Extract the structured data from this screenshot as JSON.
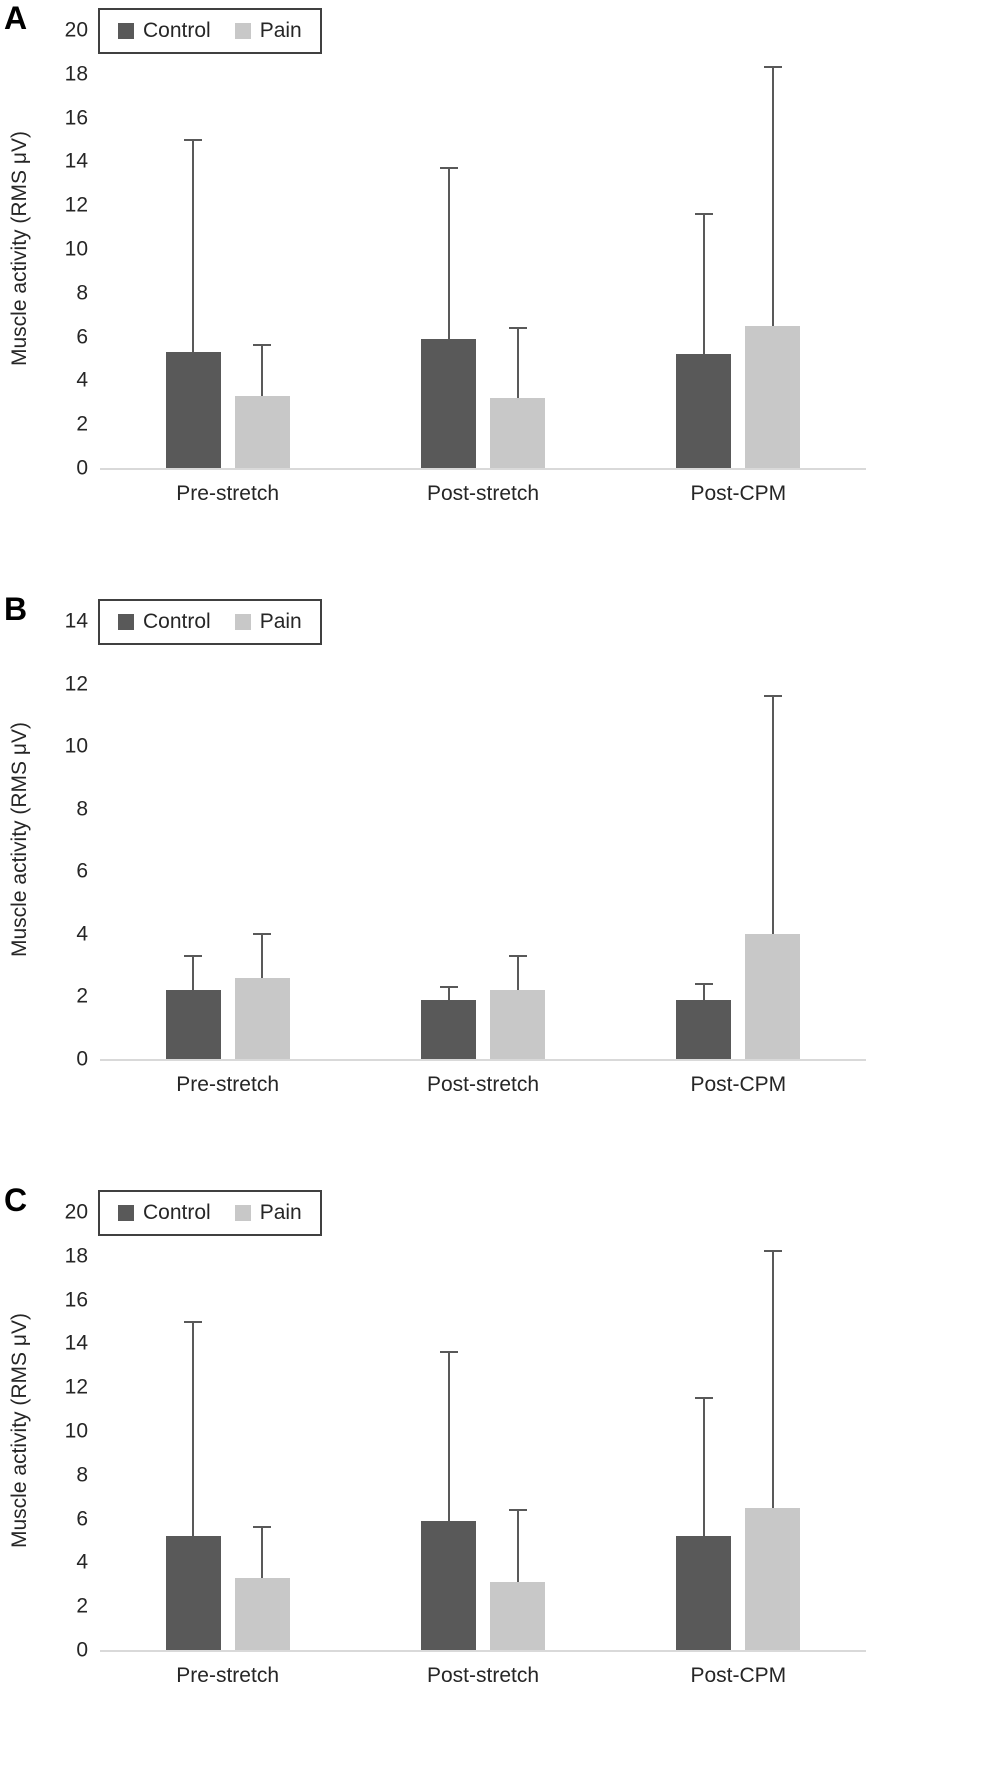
{
  "figure": {
    "colors": {
      "control": "#595959",
      "pain": "#c8c8c8",
      "error_bar": "#595959",
      "axis_line": "#d9d9d9",
      "text": "#262626"
    }
  },
  "chart_data": [
    {
      "type": "bar",
      "panel": "A",
      "title": "",
      "xlabel": "",
      "ylabel": "Muscle activity (RMS μV)",
      "ylim": [
        0,
        20
      ],
      "ytick_step": 2,
      "grid": false,
      "legend_position": "top-left",
      "categories": [
        "Pre-stretch",
        "Post-stretch",
        "Post-CPM"
      ],
      "series": [
        {
          "name": "Control",
          "color": "#595959",
          "values": [
            5.3,
            5.9,
            5.2
          ],
          "error_top": [
            15.0,
            13.7,
            11.6
          ]
        },
        {
          "name": "Pain",
          "color": "#c8c8c8",
          "values": [
            3.3,
            3.2,
            6.5
          ],
          "error_top": [
            5.6,
            6.4,
            18.3
          ]
        }
      ]
    },
    {
      "type": "bar",
      "panel": "B",
      "title": "",
      "xlabel": "",
      "ylabel": "Muscle activity (RMS μV)",
      "ylim": [
        0,
        14
      ],
      "ytick_step": 2,
      "grid": false,
      "legend_position": "top-left",
      "categories": [
        "Pre-stretch",
        "Post-stretch",
        "Post-CPM"
      ],
      "series": [
        {
          "name": "Control",
          "color": "#595959",
          "values": [
            2.2,
            1.9,
            1.9
          ],
          "error_top": [
            3.3,
            2.3,
            2.4
          ]
        },
        {
          "name": "Pain",
          "color": "#c8c8c8",
          "values": [
            2.6,
            2.2,
            4.0
          ],
          "error_top": [
            4.0,
            3.3,
            11.6
          ]
        }
      ]
    },
    {
      "type": "bar",
      "panel": "C",
      "title": "",
      "xlabel": "",
      "ylabel": "Muscle activity (RMS μV)",
      "ylim": [
        0,
        20
      ],
      "ytick_step": 2,
      "grid": false,
      "legend_position": "top-left",
      "categories": [
        "Pre-stretch",
        "Post-stretch",
        "Post-CPM"
      ],
      "series": [
        {
          "name": "Control",
          "color": "#595959",
          "values": [
            5.2,
            5.9,
            5.2
          ],
          "error_top": [
            15.0,
            13.6,
            11.5
          ]
        },
        {
          "name": "Pain",
          "color": "#c8c8c8",
          "values": [
            3.3,
            3.1,
            6.5
          ],
          "error_top": [
            5.6,
            6.4,
            18.2
          ]
        }
      ]
    }
  ]
}
